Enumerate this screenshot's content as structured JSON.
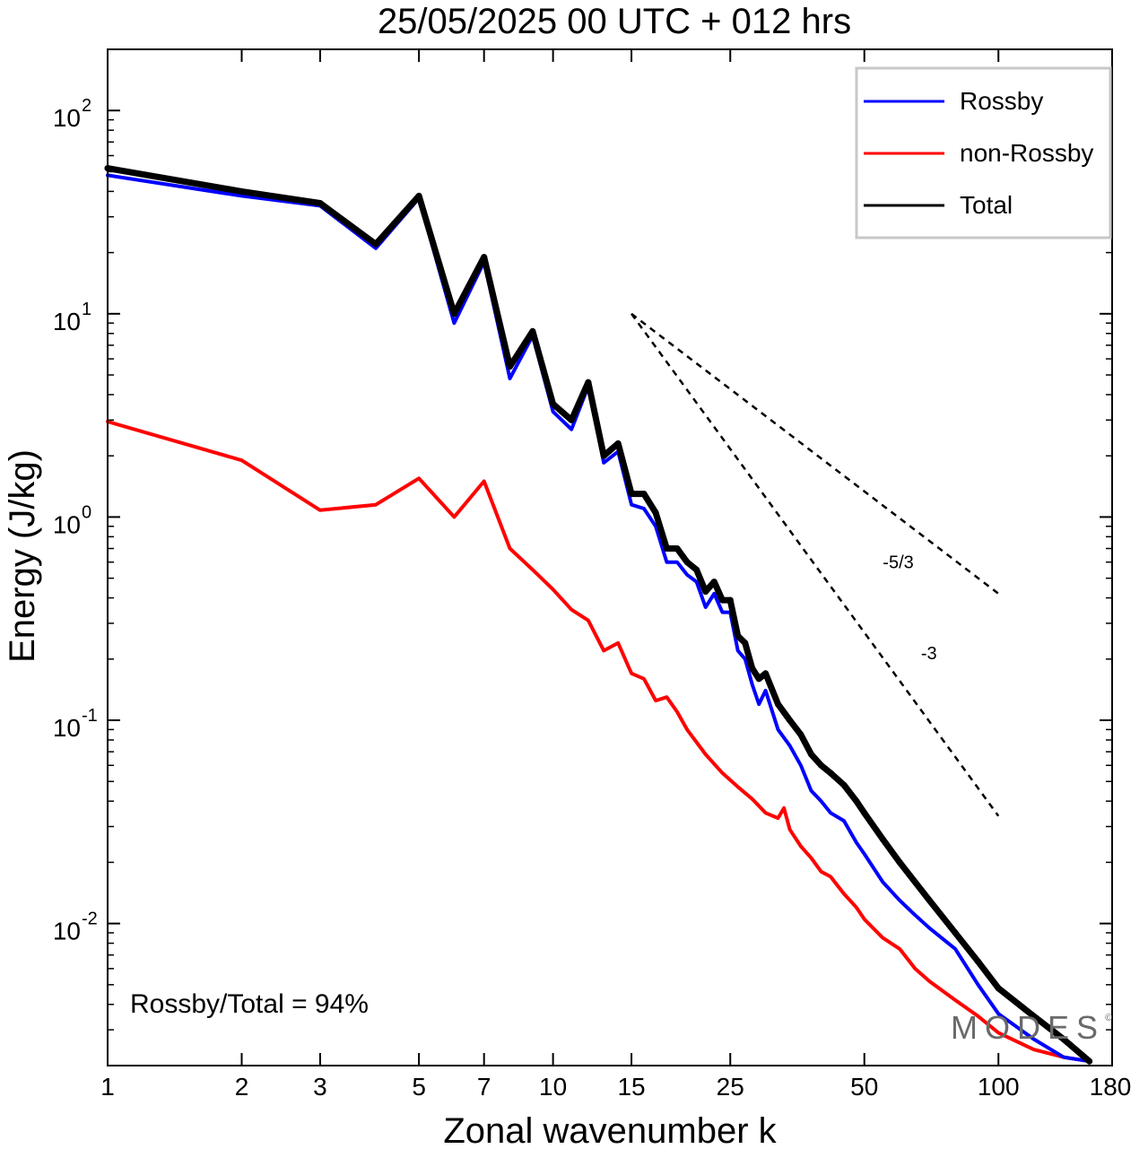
{
  "chart_data": {
    "type": "line",
    "title": "25/05/2025  00 UTC  + 012 hrs",
    "xlabel": "Zonal wavenumber k",
    "ylabel": "Energy (J/kg)",
    "xscale": "log",
    "yscale": "log",
    "xlim": [
      1,
      180
    ],
    "ylim": [
      0.002,
      200
    ],
    "x_ticks": [
      1,
      2,
      3,
      5,
      7,
      10,
      15,
      25,
      50,
      100,
      180
    ],
    "x_tick_labels": [
      "1",
      "2",
      "3",
      "5",
      "7",
      "10",
      "15",
      "25",
      "50",
      "100",
      "180"
    ],
    "y_ticks": [
      {
        "value": 100,
        "base": "10",
        "exp": "2"
      },
      {
        "value": 10,
        "base": "10",
        "exp": "1"
      },
      {
        "value": 1,
        "base": "10",
        "exp": "0"
      },
      {
        "value": 0.1,
        "base": "10",
        "exp": "-1"
      },
      {
        "value": 0.01,
        "base": "10",
        "exp": "-2"
      }
    ],
    "legend_position": "top-right",
    "series": [
      {
        "name": "Rossby",
        "color": "#0000ff",
        "x": [
          1,
          2,
          3,
          4,
          5,
          6,
          7,
          8,
          9,
          10,
          11,
          12,
          13,
          14,
          15,
          16,
          17,
          18,
          19,
          20,
          21,
          22,
          23,
          24,
          25,
          26,
          27,
          28,
          29,
          30,
          32,
          34,
          36,
          38,
          40,
          42,
          45,
          48,
          50,
          55,
          60,
          65,
          70,
          80,
          90,
          100,
          120,
          140,
          160
        ],
        "y": [
          48,
          38,
          34,
          21,
          37,
          9,
          18,
          4.8,
          7.8,
          3.3,
          2.7,
          4.4,
          1.85,
          2.1,
          1.15,
          1.1,
          0.9,
          0.6,
          0.6,
          0.52,
          0.48,
          0.36,
          0.42,
          0.34,
          0.34,
          0.22,
          0.2,
          0.15,
          0.12,
          0.14,
          0.09,
          0.075,
          0.06,
          0.045,
          0.04,
          0.035,
          0.032,
          0.025,
          0.022,
          0.016,
          0.013,
          0.011,
          0.0095,
          0.0075,
          0.005,
          0.0036,
          0.0027,
          0.0022,
          0.0021
        ]
      },
      {
        "name": "non-Rossby",
        "color": "#ff0000",
        "x": [
          1,
          2,
          3,
          4,
          5,
          6,
          7,
          8,
          9,
          10,
          11,
          12,
          13,
          14,
          15,
          16,
          17,
          18,
          19,
          20,
          22,
          24,
          26,
          28,
          30,
          32,
          33,
          34,
          36,
          38,
          40,
          42,
          45,
          48,
          50,
          55,
          60,
          65,
          70,
          80,
          90,
          100,
          120,
          140,
          160
        ],
        "y": [
          2.95,
          1.9,
          1.08,
          1.15,
          1.55,
          1.0,
          1.5,
          0.7,
          0.55,
          0.44,
          0.35,
          0.31,
          0.22,
          0.24,
          0.17,
          0.16,
          0.125,
          0.13,
          0.11,
          0.09,
          0.068,
          0.055,
          0.047,
          0.041,
          0.035,
          0.033,
          0.037,
          0.029,
          0.024,
          0.021,
          0.018,
          0.017,
          0.014,
          0.012,
          0.0105,
          0.0085,
          0.0075,
          0.006,
          0.0052,
          0.0042,
          0.0035,
          0.0029,
          0.0024,
          0.0022,
          0.0021
        ]
      },
      {
        "name": "Total",
        "color": "#000000",
        "x": [
          1,
          2,
          3,
          4,
          5,
          6,
          7,
          8,
          9,
          10,
          11,
          12,
          13,
          14,
          15,
          16,
          17,
          18,
          19,
          20,
          21,
          22,
          23,
          24,
          25,
          26,
          27,
          28,
          29,
          30,
          32,
          34,
          36,
          38,
          40,
          42,
          45,
          48,
          50,
          55,
          60,
          65,
          70,
          80,
          90,
          100,
          120,
          140,
          160
        ],
        "y": [
          52,
          40,
          35,
          22,
          38,
          10,
          19,
          5.5,
          8.2,
          3.6,
          3.0,
          4.6,
          2.0,
          2.3,
          1.3,
          1.3,
          1.05,
          0.7,
          0.7,
          0.6,
          0.55,
          0.43,
          0.48,
          0.39,
          0.39,
          0.26,
          0.24,
          0.18,
          0.16,
          0.17,
          0.12,
          0.1,
          0.085,
          0.068,
          0.06,
          0.055,
          0.048,
          0.04,
          0.035,
          0.026,
          0.02,
          0.016,
          0.013,
          0.009,
          0.0065,
          0.0048,
          0.0035,
          0.0027,
          0.0021
        ]
      }
    ],
    "reference_slopes": [
      {
        "label": "-5/3",
        "x": [
          15,
          100
        ],
        "y": [
          10,
          0.42
        ]
      },
      {
        "label": "-3",
        "x": [
          15,
          100
        ],
        "y": [
          10,
          0.0338
        ]
      }
    ],
    "annotation": "Rossby/Total = 94%",
    "watermark": {
      "text": "MODES",
      "symbol": "©"
    }
  }
}
